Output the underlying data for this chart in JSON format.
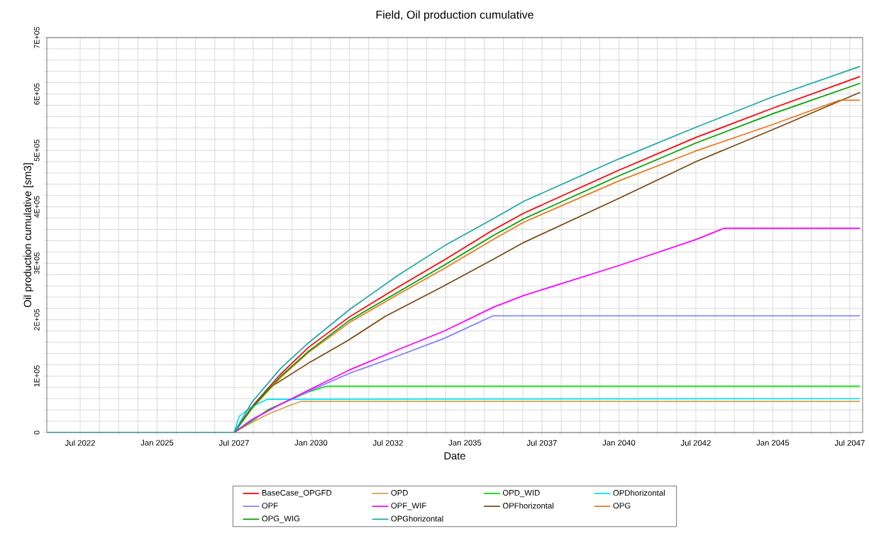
{
  "chart_data": {
    "type": "line",
    "title": "Field, Oil production cumulative",
    "xlabel": "Date",
    "ylabel": "Oil production cumulative [sm3]",
    "xlim": [
      "2021-06",
      "2047-12"
    ],
    "xticks": [
      {
        "value": "2022-07",
        "label": "Jul 2022"
      },
      {
        "value": "2025-01",
        "label": "Jan 2025"
      },
      {
        "value": "2027-07",
        "label": "Jul 2027"
      },
      {
        "value": "2030-01",
        "label": "Jan 2030"
      },
      {
        "value": "2032-07",
        "label": "Jul 2032"
      },
      {
        "value": "2035-01",
        "label": "Jan 2035"
      },
      {
        "value": "2037-07",
        "label": "Jul 2037"
      },
      {
        "value": "2040-01",
        "label": "Jan 2040"
      },
      {
        "value": "2042-07",
        "label": "Jul 2042"
      },
      {
        "value": "2045-01",
        "label": "Jan 2045"
      },
      {
        "value": "2047-07",
        "label": "Jul 2047"
      }
    ],
    "ylim": [
      0,
      700000
    ],
    "yticks": [
      0,
      {
        "value": 100000,
        "label": "1E+05"
      },
      {
        "value": 200000,
        "label": "2E+05"
      },
      {
        "value": 300000,
        "label": "3E+05"
      },
      {
        "value": 400000,
        "label": "4E+05"
      },
      {
        "value": 500000,
        "label": "5E+05"
      },
      {
        "value": 600000,
        "label": "6E+05"
      },
      {
        "value": 700000,
        "label": "7E+05"
      }
    ],
    "grid": true,
    "legend": "bottom",
    "line_style": "solid",
    "series": [
      {
        "name": "BaseCase_OPGFD",
        "color": "#ff0000",
        "x": [
          "2021-06",
          "2027-07",
          "2028-02",
          "2029-01",
          "2029-12",
          "2031-04",
          "2032-11",
          "2034-05",
          "2035-12",
          "2036-12",
          "2040-01",
          "2042-07",
          "2045-01",
          "2047-11"
        ],
        "values": [
          0,
          0,
          46000,
          103000,
          151000,
          205000,
          258000,
          306000,
          359000,
          389000,
          465000,
          523000,
          575000,
          631000
        ]
      },
      {
        "name": "OPD",
        "color": "#d8a050",
        "x": [
          "2021-06",
          "2027-07",
          "2028-02",
          "2028-08",
          "2029-03",
          "2029-09",
          "2047-11"
        ],
        "values": [
          0,
          0,
          18000,
          32000,
          45000,
          55000,
          55000
        ]
      },
      {
        "name": "OPD_WID",
        "color": "#00e000",
        "x": [
          "2021-06",
          "2027-07",
          "2028-02",
          "2028-08",
          "2029-12",
          "2030-07",
          "2047-11"
        ],
        "values": [
          0,
          0,
          20000,
          40000,
          72000,
          82000,
          82000
        ]
      },
      {
        "name": "OPDhorizontal",
        "color": "#00e0ff",
        "x": [
          "2021-06",
          "2027-07",
          "2027-09",
          "2028-02",
          "2028-08",
          "2047-11"
        ],
        "values": [
          0,
          0,
          29000,
          46000,
          59000,
          60000
        ]
      },
      {
        "name": "OPF",
        "color": "#8080ff",
        "x": [
          "2021-06",
          "2027-07",
          "2028-02",
          "2029-01",
          "2029-12",
          "2031-04",
          "2032-11",
          "2034-05",
          "2035-12",
          "2047-11"
        ],
        "values": [
          0,
          0,
          23000,
          50000,
          73000,
          105000,
          136000,
          167000,
          207000,
          207000
        ]
      },
      {
        "name": "OPF_WIF",
        "color": "#ff00ff",
        "x": [
          "2021-06",
          "2027-07",
          "2028-02",
          "2029-01",
          "2029-12",
          "2031-04",
          "2032-11",
          "2034-05",
          "2035-12",
          "2036-12",
          "2040-01",
          "2042-07",
          "2043-06",
          "2047-11"
        ],
        "values": [
          0,
          0,
          23000,
          50000,
          75000,
          111000,
          147000,
          180000,
          222000,
          243000,
          296000,
          342000,
          362000,
          362000
        ]
      },
      {
        "name": "OPFhorizontal",
        "color": "#7b4a12",
        "x": [
          "2021-06",
          "2027-07",
          "2028-02",
          "2028-08",
          "2029-12",
          "2031-03",
          "2032-06",
          "2034-04",
          "2035-12",
          "2036-12",
          "2040-01",
          "2042-07",
          "2045-01",
          "2047-11"
        ],
        "values": [
          0,
          0,
          43000,
          77000,
          123000,
          162000,
          206000,
          258000,
          307000,
          337000,
          415000,
          480000,
          537000,
          603000
        ]
      },
      {
        "name": "OPG",
        "color": "#e87820",
        "x": [
          "2021-06",
          "2027-07",
          "2028-02",
          "2029-01",
          "2029-12",
          "2031-04",
          "2032-11",
          "2034-05",
          "2035-12",
          "2036-12",
          "2040-01",
          "2042-07",
          "2045-01",
          "2047-03",
          "2047-11"
        ],
        "values": [
          0,
          0,
          43000,
          97000,
          142000,
          195000,
          245000,
          291000,
          342000,
          373000,
          446000,
          499000,
          546000,
          589000,
          589000
        ]
      },
      {
        "name": "OPG_WIG",
        "color": "#00a000",
        "x": [
          "2021-06",
          "2027-07",
          "2028-02",
          "2029-01",
          "2029-12",
          "2031-04",
          "2032-11",
          "2034-05",
          "2035-12",
          "2036-12",
          "2040-01",
          "2042-07",
          "2045-01",
          "2047-11"
        ],
        "values": [
          0,
          0,
          44000,
          99000,
          144000,
          199000,
          249000,
          297000,
          349000,
          379000,
          455000,
          513000,
          565000,
          619000
        ]
      },
      {
        "name": "OPGhorizontal",
        "color": "#20a8a8",
        "x": [
          "2021-06",
          "2027-07",
          "2028-02",
          "2029-01",
          "2029-12",
          "2031-04",
          "2032-11",
          "2034-05",
          "2035-12",
          "2036-12",
          "2040-01",
          "2042-07",
          "2045-01",
          "2047-11"
        ],
        "values": [
          0,
          0,
          54000,
          113000,
          159000,
          218000,
          279000,
          331000,
          379000,
          410000,
          485000,
          541000,
          595000,
          649000
        ]
      }
    ]
  }
}
